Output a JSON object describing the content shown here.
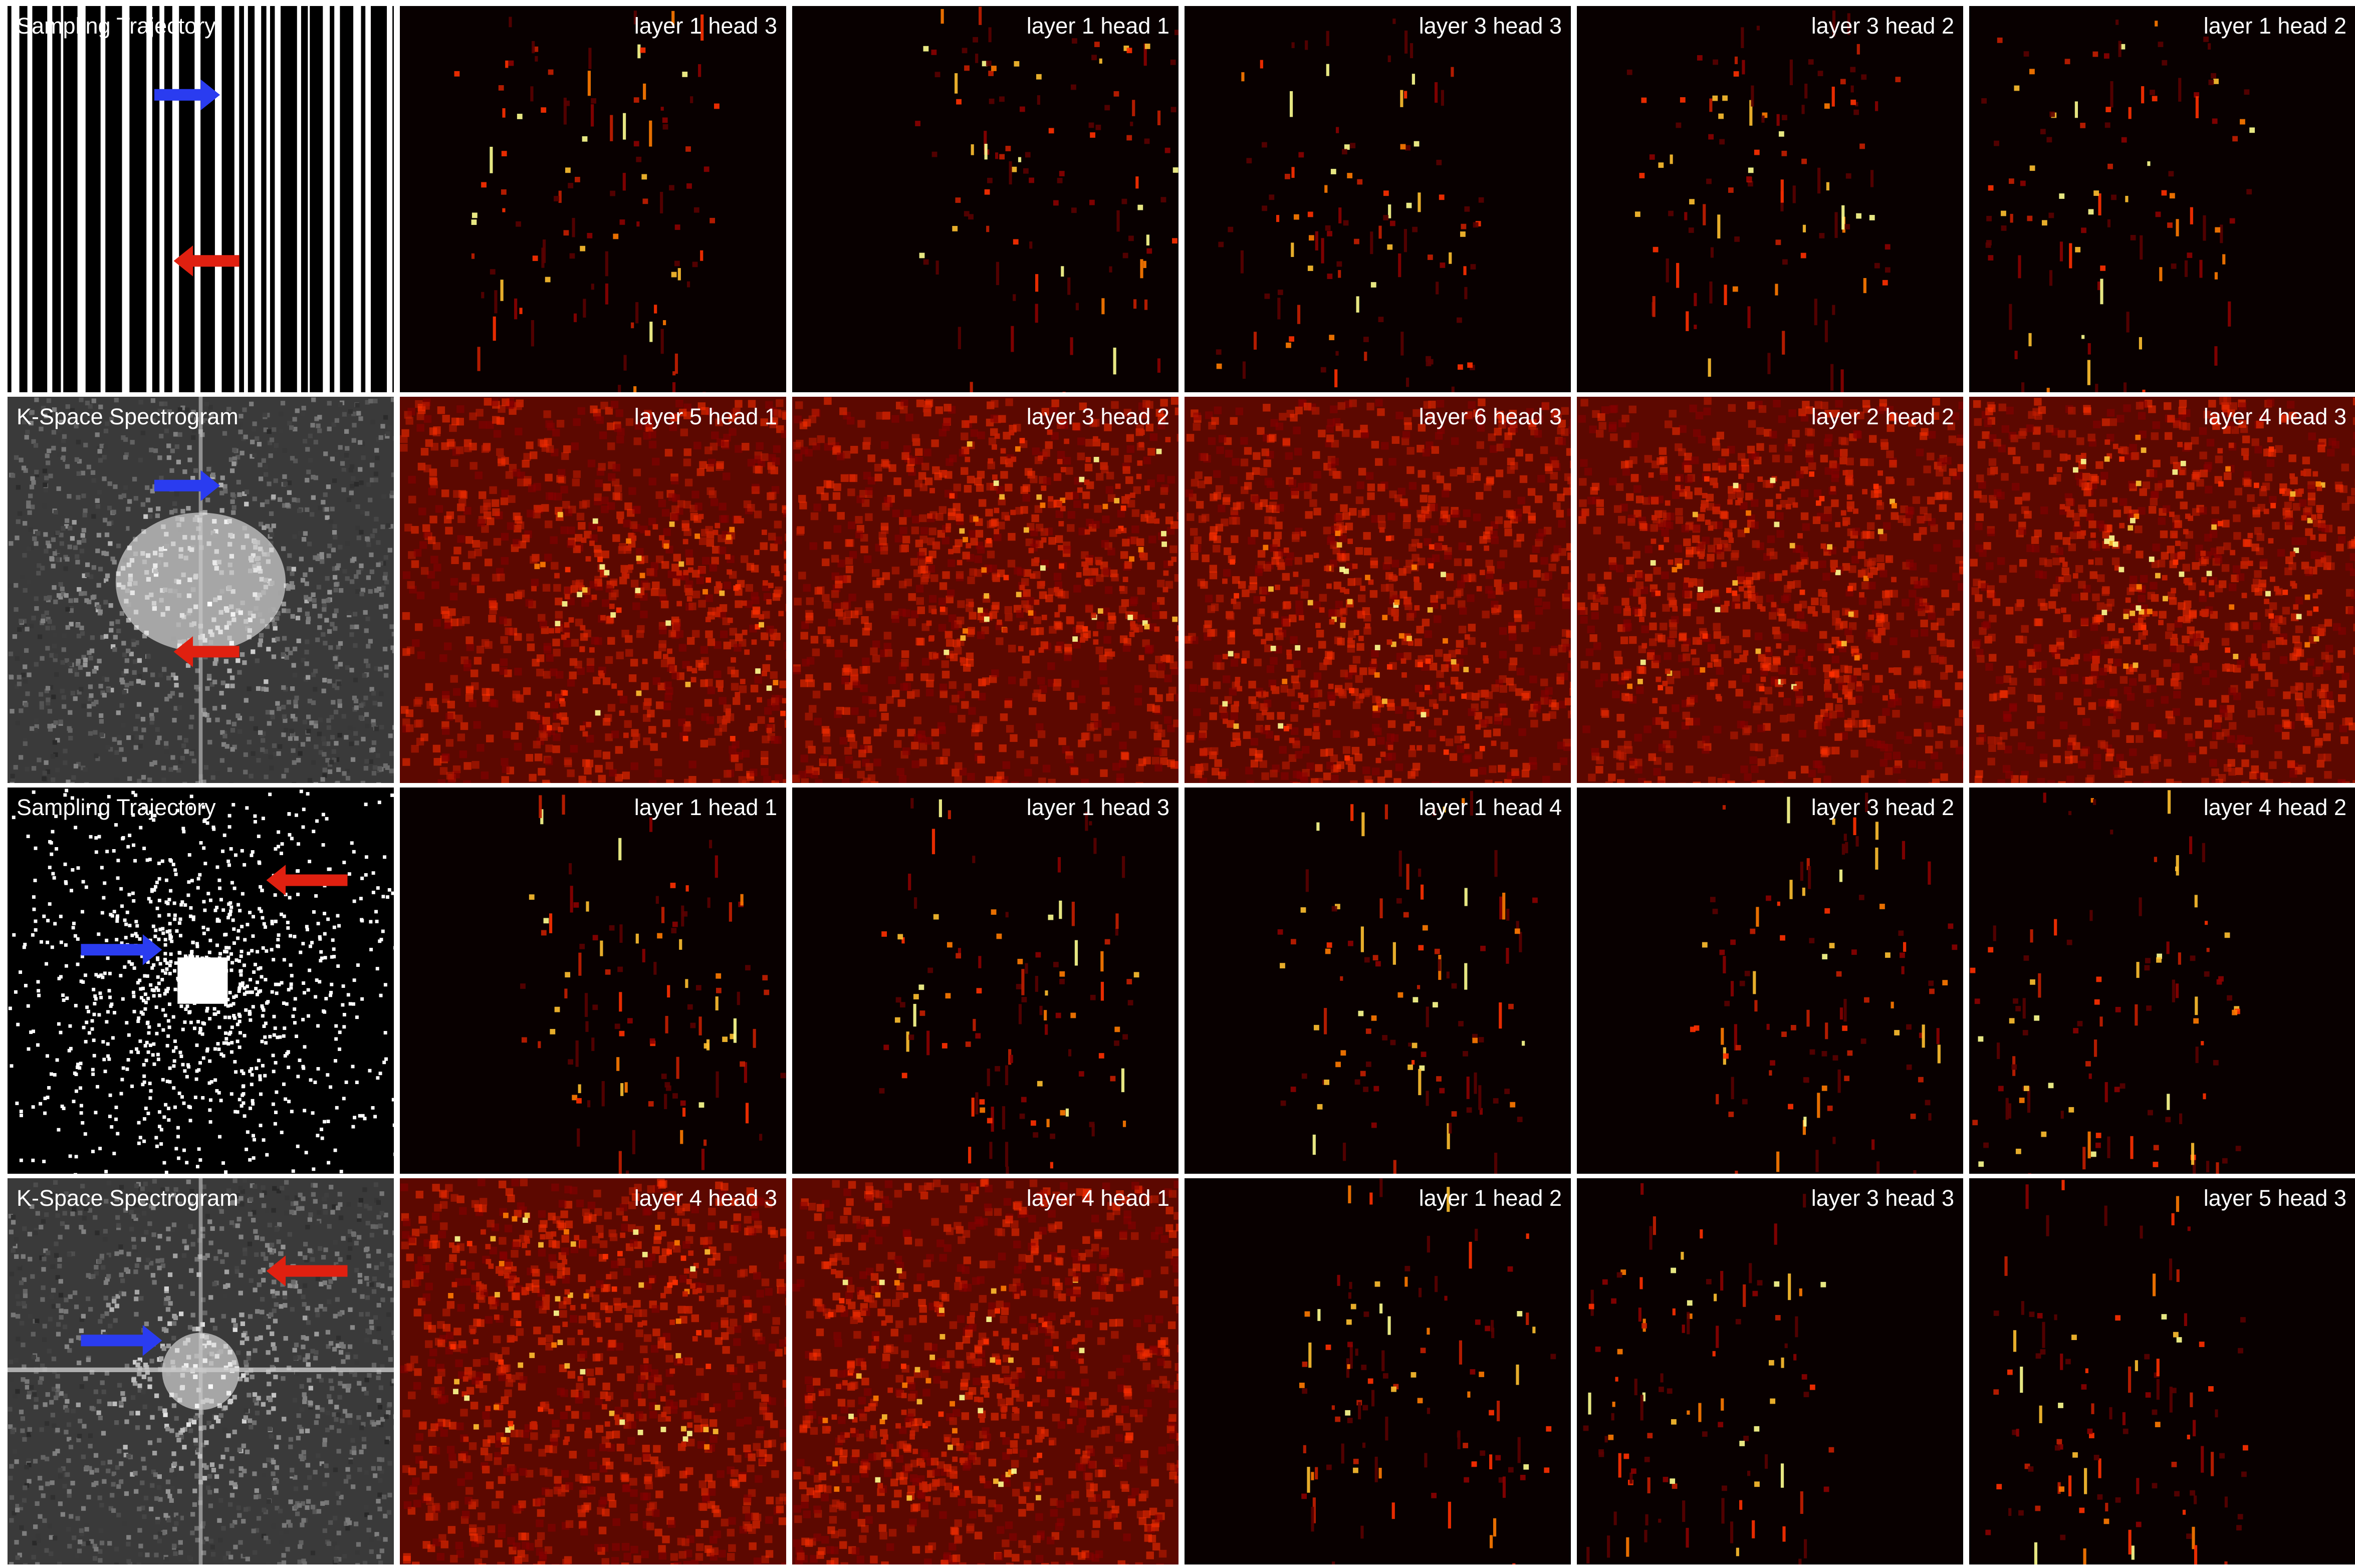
{
  "rows": [
    {
      "panels": [
        "Sampling Trajectory",
        "layer 1 head 3",
        "layer 1 head 1",
        "layer 3 head 3",
        "layer 3 head 2",
        "layer 1 head 2"
      ]
    },
    {
      "panels": [
        "K-Space Spectrogram",
        "layer 5 head 1",
        "layer 3 head 2",
        "layer 6 head 3",
        "layer 2 head 2",
        "layer 4 head 3"
      ]
    },
    {
      "panels": [
        "Sampling Trajectory",
        "layer 1 head 1",
        "layer 1 head 3",
        "layer 1 head 4",
        "layer 3 head 2",
        "layer 4 head 2"
      ]
    },
    {
      "panels": [
        "K-Space Spectrogram",
        "layer 4 head 3",
        "layer 4 head 1",
        "layer 1 head 2",
        "layer 3 head 3",
        "layer 5 head 3"
      ]
    }
  ]
}
